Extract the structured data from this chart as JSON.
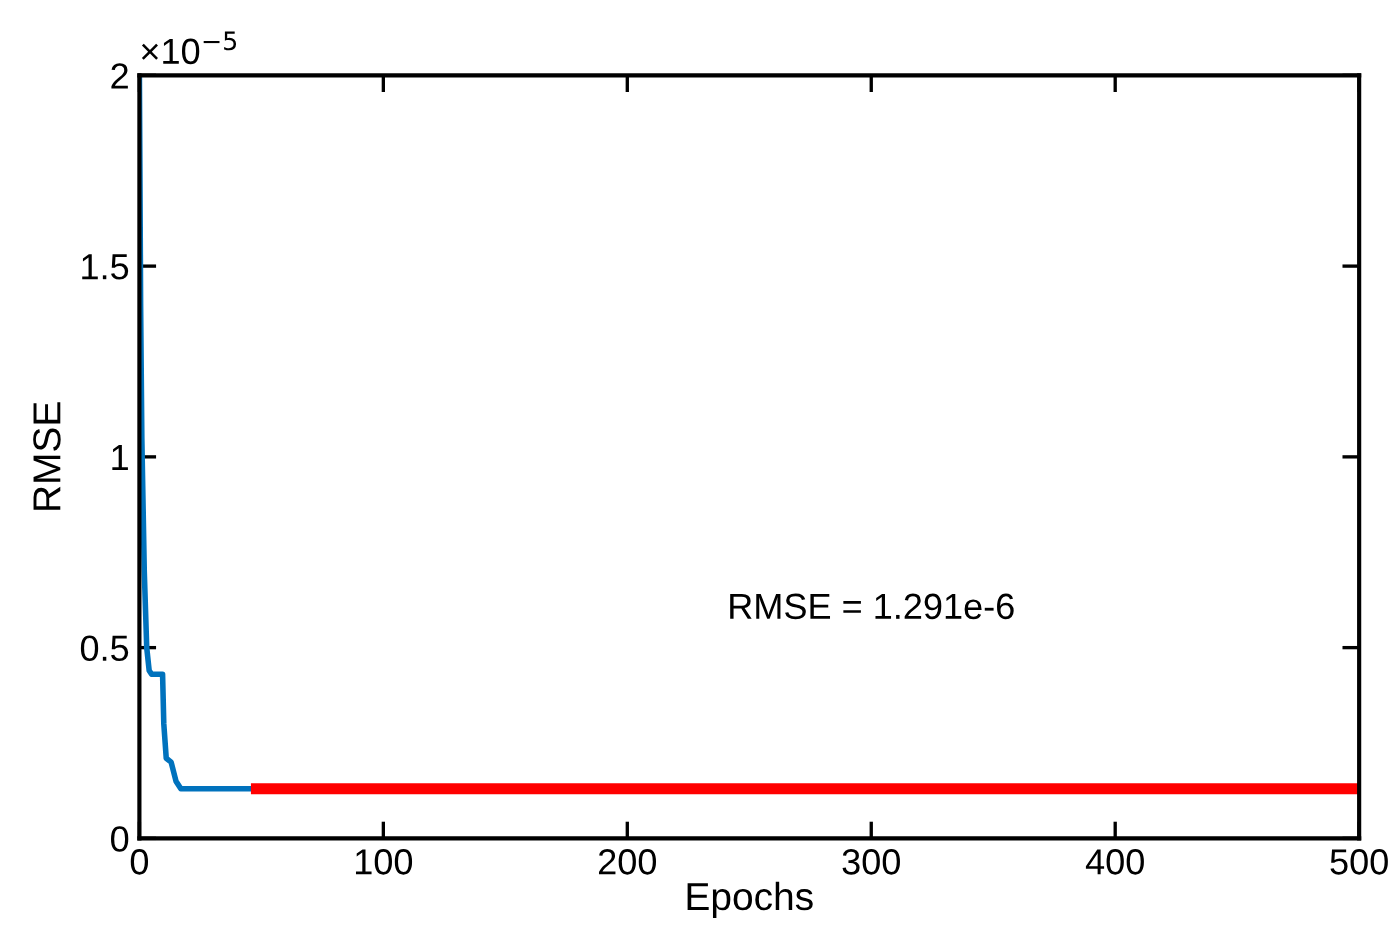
{
  "chart_data": {
    "type": "line",
    "xlabel": "Epochs",
    "ylabel": "RMSE",
    "annotations": [
      "×10$^{−5}$",
      "RMSE = 1.291e-6"
    ],
    "series": [
      {
        "color": "#0072bd",
        "x": [
          0,
          0.5,
          1,
          2,
          3,
          4,
          5,
          9.5,
          10,
          11,
          13,
          15,
          17,
          48
        ],
        "values": [
          2,
          1.4,
          1.05,
          0.7,
          0.5,
          0.44,
          0.43,
          0.43,
          0.3,
          0.21,
          0.2,
          0.15,
          0.13,
          0.13
        ]
      },
      {
        "color": "#ff0000",
        "x": [
          48,
          500
        ],
        "values": [
          0.13,
          0.13
        ]
      }
    ],
    "xlim": [
      0,
      500
    ],
    "xticks": [
      0,
      100,
      200,
      300,
      400,
      500
    ],
    "ylim": [
      0,
      2
    ],
    "yticks": [
      0,
      0.5,
      1,
      1.5,
      2
    ],
    "grid": false,
    "legend": false,
    "marker": "none",
    "line_style": "solid"
  }
}
